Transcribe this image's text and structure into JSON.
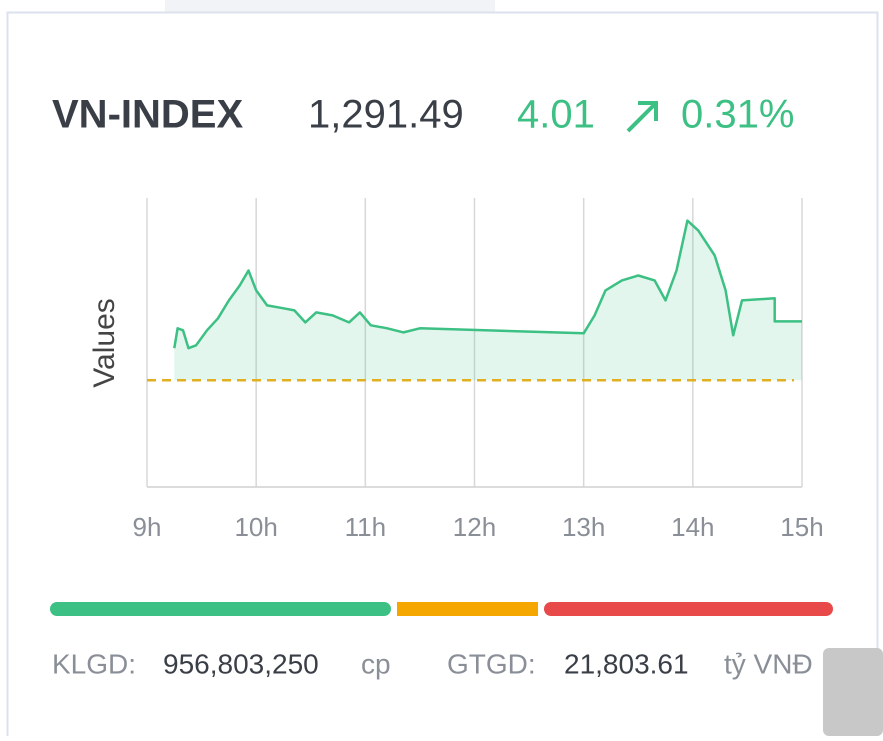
{
  "header": {
    "name": "VN-INDEX",
    "value": "1,291.49",
    "change": "4.01",
    "percent": "0.31%"
  },
  "chart_data": {
    "type": "line",
    "y_label": "Values",
    "xlim": [
      9,
      15
    ],
    "xticks": [
      {
        "value": 9,
        "label": "9h"
      },
      {
        "value": 10,
        "label": "10h"
      },
      {
        "value": 11,
        "label": "11h"
      },
      {
        "value": 12,
        "label": "12h"
      },
      {
        "value": 13,
        "label": "13h"
      },
      {
        "value": 14,
        "label": "14h"
      },
      {
        "value": 15,
        "label": "15h"
      }
    ],
    "ylim": [
      1280.2,
      1299.9
    ],
    "reference": 1287.48,
    "reference_color": "#e0b020",
    "grid": true,
    "series": [
      {
        "color": "#3cc083",
        "x": [
          9.25,
          9.28,
          9.33,
          9.38,
          9.45,
          9.55,
          9.65,
          9.75,
          9.85,
          9.93,
          10.0,
          10.1,
          10.25,
          10.35,
          10.45,
          10.55,
          10.7,
          10.85,
          10.95,
          11.05,
          11.2,
          11.35,
          11.5,
          13.0,
          13.1,
          13.2,
          13.35,
          13.5,
          13.65,
          13.75,
          13.85,
          13.95,
          14.05,
          14.2,
          14.3,
          14.37,
          14.45,
          14.75,
          14.75,
          15.0
        ],
        "values": [
          1289.66,
          1291.02,
          1290.88,
          1289.66,
          1289.86,
          1290.88,
          1291.7,
          1292.92,
          1293.94,
          1294.96,
          1293.6,
          1292.58,
          1292.38,
          1292.24,
          1291.42,
          1292.1,
          1291.9,
          1291.42,
          1292.1,
          1291.22,
          1291.02,
          1290.74,
          1291.02,
          1290.68,
          1291.9,
          1293.6,
          1294.28,
          1294.62,
          1294.28,
          1292.92,
          1294.96,
          1298.36,
          1297.68,
          1295.98,
          1293.6,
          1290.54,
          1292.92,
          1293.06,
          1291.49,
          1291.49
        ]
      }
    ]
  },
  "footer": {
    "volume_label": "KLGD:",
    "volume": "956,803,250",
    "volume_unit": "cp",
    "turnover_label": "GTGD:",
    "turnover": "21,803.61",
    "turnover_unit": "tỷ VNĐ"
  }
}
